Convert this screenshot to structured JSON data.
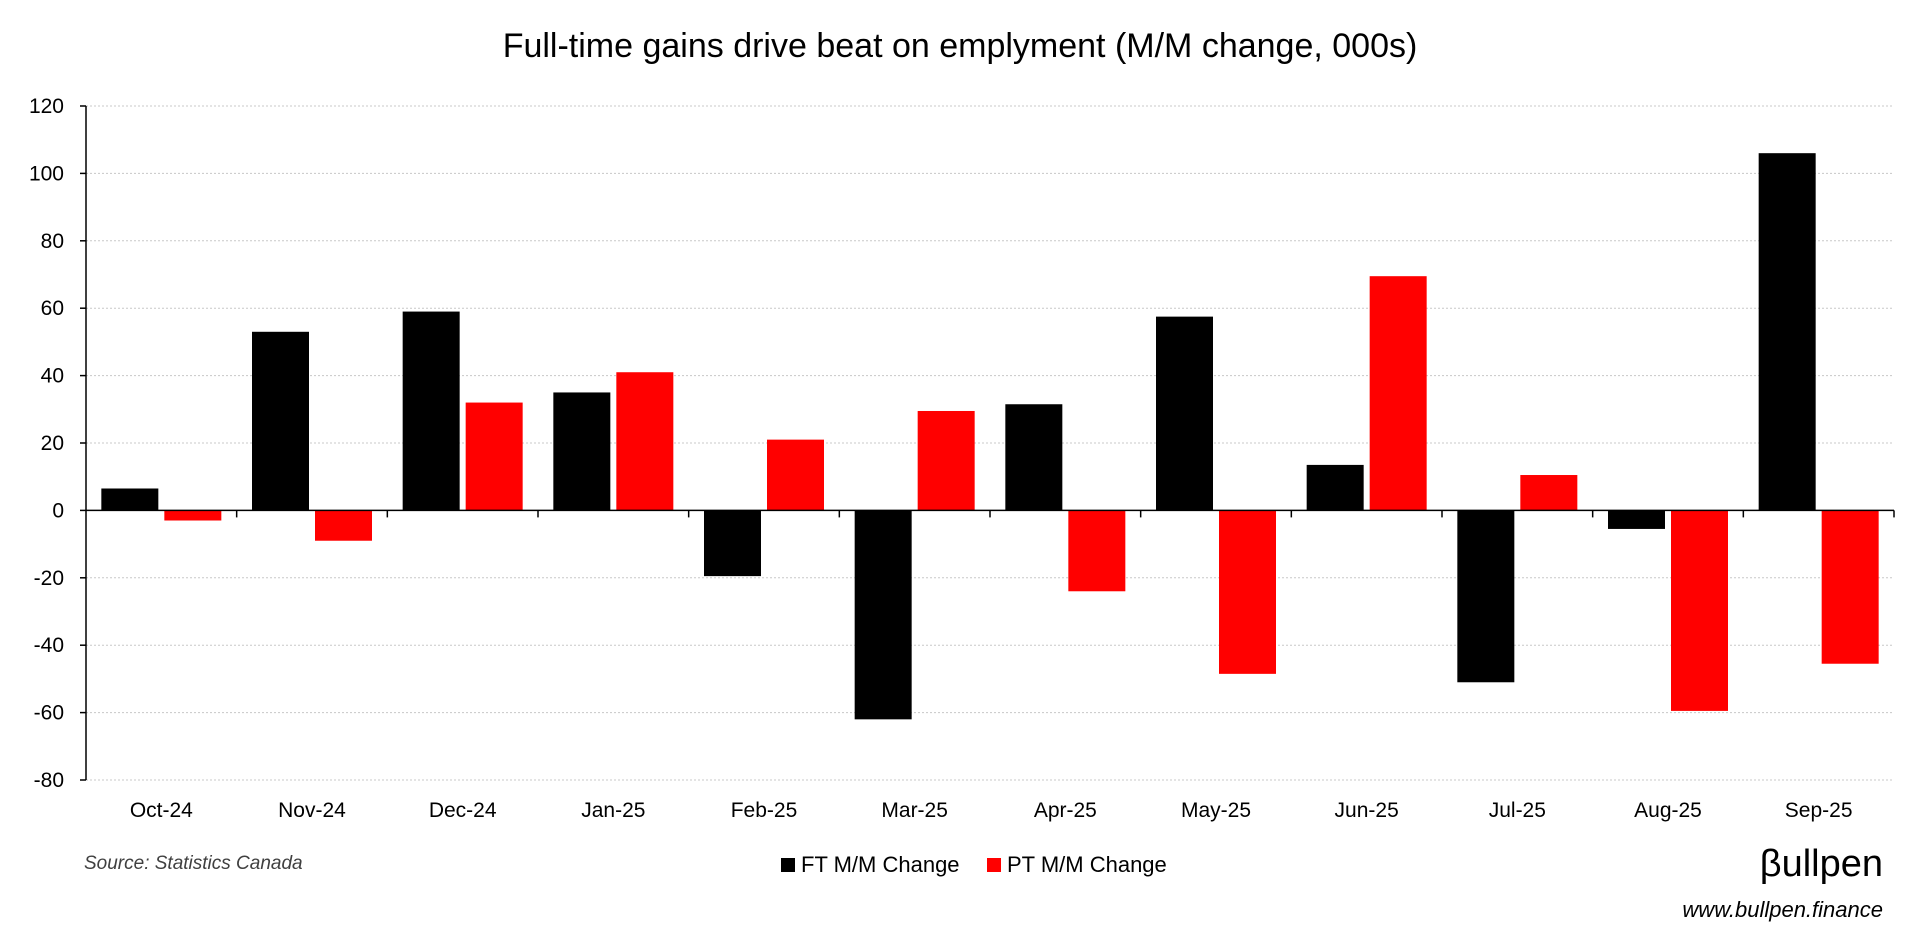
{
  "chart_data": {
    "type": "bar",
    "title": "Full-time gains drive beat on emplyment (M/M change, 000s)",
    "xlabel": "",
    "ylabel": "",
    "categories": [
      "Oct-24",
      "Nov-24",
      "Dec-24",
      "Jan-25",
      "Feb-25",
      "Mar-25",
      "Apr-25",
      "May-25",
      "Jun-25",
      "Jul-25",
      "Aug-25",
      "Sep-25"
    ],
    "series": [
      {
        "name": "FT M/M Change",
        "color": "#000000",
        "values": [
          6.5,
          53,
          59,
          35,
          -19.5,
          -62,
          31.5,
          57.5,
          13.5,
          -51,
          -5.5,
          106
        ]
      },
      {
        "name": "PT M/M Change",
        "color": "#ff0000",
        "values": [
          -3,
          -9,
          32,
          41,
          21,
          29.5,
          -24,
          -48.5,
          69.5,
          10.5,
          -59.5,
          -45.5
        ]
      }
    ],
    "ylim": [
      -80,
      120
    ],
    "yticks": [
      120,
      100,
      80,
      60,
      40,
      20,
      0,
      -20,
      -40,
      -60,
      -80
    ],
    "grid": true,
    "legend": "bottom-center"
  },
  "footer": {
    "source": "Source: Statistics Canada",
    "brand": "βullpen",
    "url": "www.bullpen.finance"
  }
}
